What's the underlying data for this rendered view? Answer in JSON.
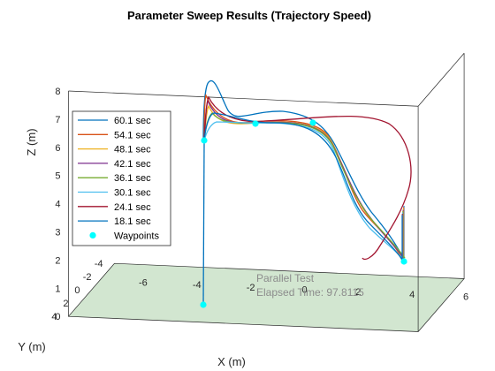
{
  "chart_data": {
    "type": "line",
    "title": "Parameter Sweep Results (Trajectory Speed)",
    "xlabel": "X (m)",
    "ylabel": "Y (m)",
    "zlabel": "Z (m)",
    "xlim": [
      -7,
      6
    ],
    "ylim": [
      -4,
      4
    ],
    "zlim": [
      0,
      8
    ],
    "x_ticks": [
      "-6",
      "-4",
      "-2",
      "0",
      "2",
      "4",
      "6"
    ],
    "y_ticks": [
      "-4",
      "-2",
      "0",
      "2",
      "4"
    ],
    "z_ticks": [
      "0",
      "1",
      "2",
      "3",
      "4",
      "5",
      "6",
      "7",
      "8"
    ],
    "grid": false,
    "legend_position": "left",
    "annotation": [
      "Parallel Test",
      "Elapsed Time: 97.8115"
    ],
    "series": [
      {
        "name": "60.1 sec",
        "color": "#0072bd"
      },
      {
        "name": "54.1 sec",
        "color": "#d95319"
      },
      {
        "name": "48.1 sec",
        "color": "#edb120"
      },
      {
        "name": "42.1 sec",
        "color": "#7e2f8e"
      },
      {
        "name": "36.1 sec",
        "color": "#77ac30"
      },
      {
        "name": "30.1 sec",
        "color": "#4dbeee"
      },
      {
        "name": "24.1 sec",
        "color": "#a2142f"
      },
      {
        "name": "18.1 sec",
        "color": "#0072bd"
      }
    ],
    "waypoints_label": "Waypoints",
    "waypoints_color": "#00ffff",
    "waypoints": [
      [
        -2.3,
        -2,
        0
      ],
      [
        -2.3,
        -2,
        4.8
      ],
      [
        -0.5,
        -2,
        5.1
      ],
      [
        1.6,
        -2,
        5.1
      ],
      [
        4.6,
        -2,
        0
      ]
    ],
    "floor_color": "#d2e6d0"
  }
}
